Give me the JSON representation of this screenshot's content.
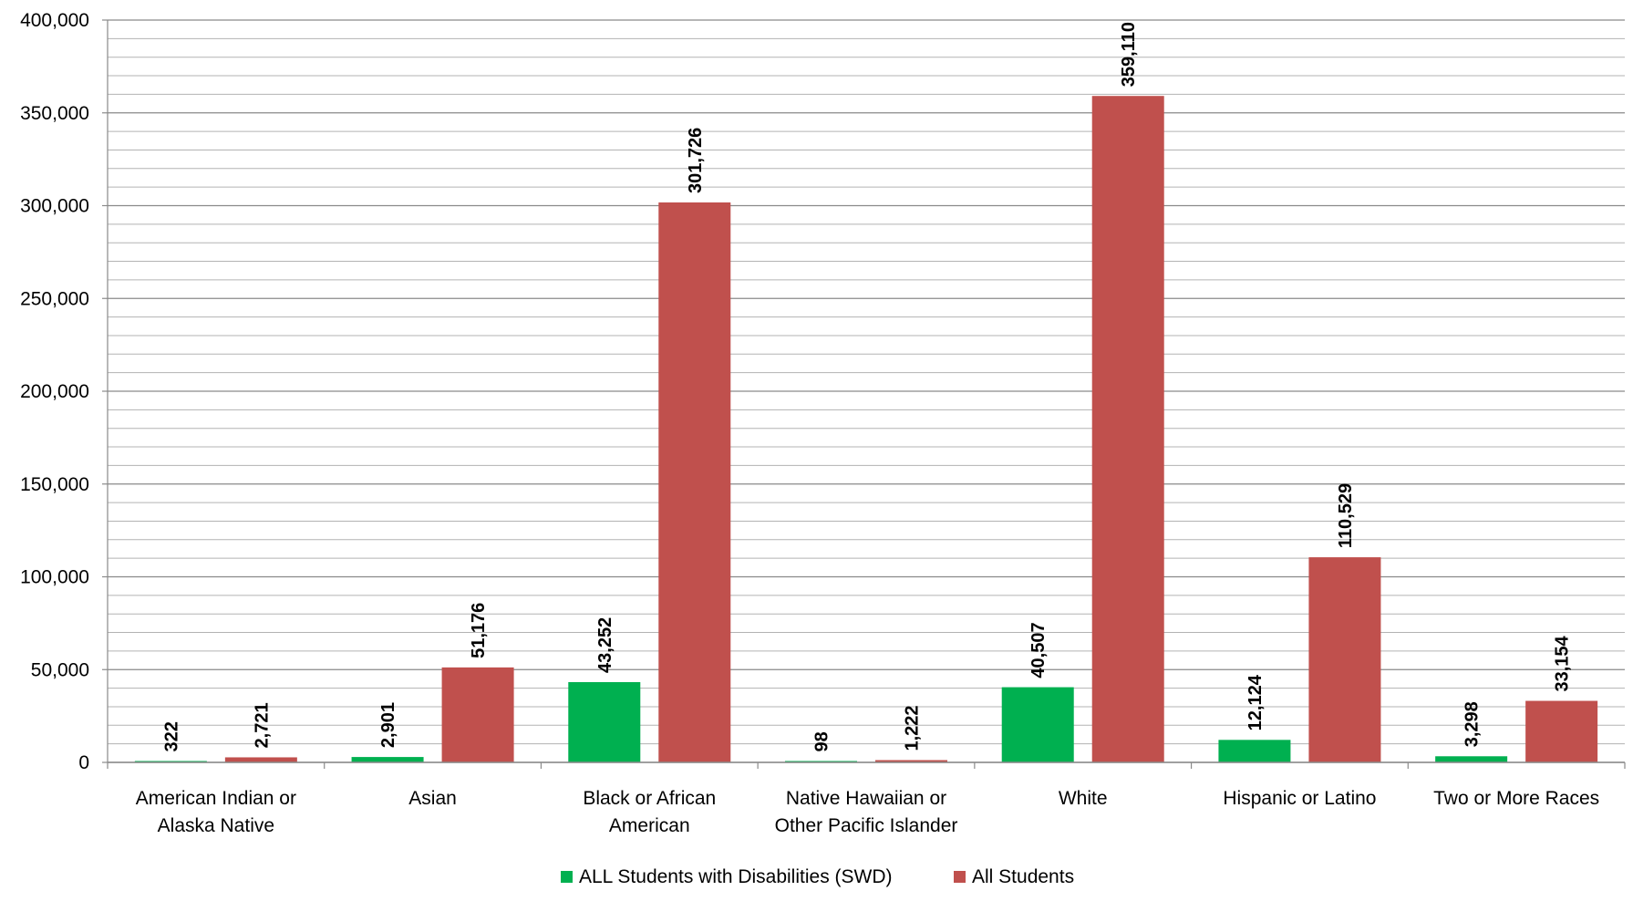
{
  "chart_data": {
    "type": "bar",
    "title": "",
    "xlabel": "",
    "ylabel": "",
    "ylim": [
      0,
      400000
    ],
    "y_ticks": [
      "0",
      "50,000",
      "100,000",
      "150,000",
      "200,000",
      "250,000",
      "300,000",
      "350,000",
      "400,000"
    ],
    "y_tick_values": [
      0,
      50000,
      100000,
      150000,
      200000,
      250000,
      300000,
      350000,
      400000
    ],
    "minor_gridlines_per_major": 5,
    "grid": true,
    "legend_position": "bottom",
    "categories": [
      [
        "American Indian or",
        "Alaska Native"
      ],
      [
        "Asian"
      ],
      [
        "Black or African",
        "American"
      ],
      [
        "Native Hawaiian or",
        "Other Pacific Islander"
      ],
      [
        "White"
      ],
      [
        "Hispanic or Latino"
      ],
      [
        "Two or More Races"
      ]
    ],
    "series": [
      {
        "name": "ALL Students with Disabilities (SWD)",
        "color": "#00b050",
        "values": [
          322,
          2901,
          43252,
          98,
          40507,
          12124,
          3298
        ],
        "labels": [
          "322",
          "2,901",
          "43,252",
          "98",
          "40,507",
          "12,124",
          "3,298"
        ]
      },
      {
        "name": "All Students",
        "color": "#c0504d",
        "values": [
          2721,
          51176,
          301726,
          1222,
          359110,
          110529,
          33154
        ],
        "labels": [
          "2,721",
          "51,176",
          "301,726",
          "1,222",
          "359,110",
          "110,529",
          "33,154"
        ]
      }
    ]
  }
}
